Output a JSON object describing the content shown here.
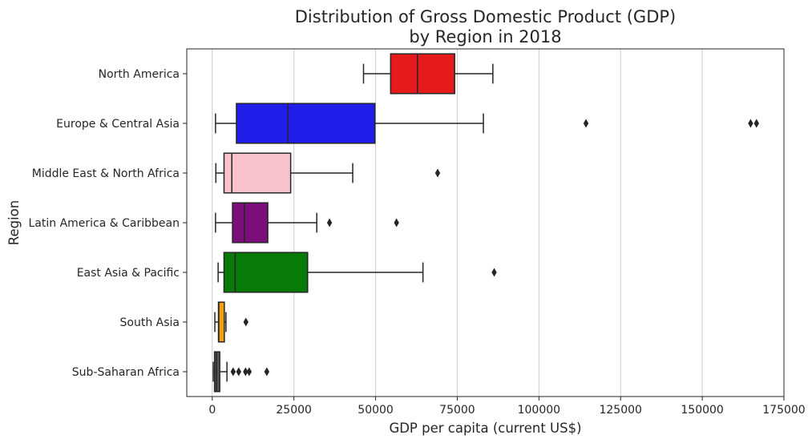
{
  "chart_data": {
    "type": "box",
    "orientation": "horizontal",
    "title_lines": [
      "Distribution of Gross Domestic Product (GDP)",
      "by Region in 2018"
    ],
    "xlabel": "GDP per capita (current US$)",
    "ylabel": "Region",
    "xlim": [
      -7800,
      175000
    ],
    "xticks": [
      0,
      25000,
      50000,
      75000,
      100000,
      125000,
      150000,
      175000
    ],
    "xtick_labels": [
      "0",
      "25000",
      "50000",
      "75000",
      "100000",
      "125000",
      "150000",
      "175000"
    ],
    "grid": "vertical",
    "categories": [
      "North America",
      "Europe & Central Asia",
      "Middle East & North Africa",
      "Latin America & Caribbean",
      "East Asia & Pacific",
      "South Asia",
      "Sub-Saharan Africa"
    ],
    "series": [
      {
        "category": "North America",
        "color": "#e41a1c",
        "whisker_low": 46300,
        "q1": 54600,
        "median": 62800,
        "q3": 74200,
        "whisker_high": 85900,
        "outliers": []
      },
      {
        "category": "Europe & Central Asia",
        "color": "#1e1ee8",
        "whisker_low": 1000,
        "q1": 7400,
        "median": 23200,
        "q3": 49800,
        "whisker_high": 83000,
        "outliers": [
          114400,
          164800,
          166600
        ]
      },
      {
        "category": "Middle East & North Africa",
        "color": "#f9c3cd",
        "whisker_low": 1100,
        "q1": 3600,
        "median": 6000,
        "q3": 24000,
        "whisker_high": 43000,
        "outliers": [
          69000
        ]
      },
      {
        "category": "Latin America & Caribbean",
        "color": "#7a0e7a",
        "whisker_low": 1000,
        "q1": 6200,
        "median": 9800,
        "q3": 17000,
        "whisker_high": 32000,
        "outliers": [
          35900,
          56400
        ]
      },
      {
        "category": "East Asia & Pacific",
        "color": "#087a08",
        "whisker_low": 1800,
        "q1": 3600,
        "median": 7000,
        "q3": 29200,
        "whisker_high": 64500,
        "outliers": [
          86300
        ]
      },
      {
        "category": "South Asia",
        "color": "#f5a00f",
        "whisker_low": 800,
        "q1": 1900,
        "median": 2000,
        "q3": 3700,
        "whisker_high": 4200,
        "outliers": [
          10300
        ]
      },
      {
        "category": "Sub-Saharan Africa",
        "color": "#555555",
        "whisker_low": 300,
        "q1": 700,
        "median": 1300,
        "q3": 2300,
        "whisker_high": 4500,
        "outliers": [
          6400,
          8100,
          10200,
          11300,
          16700
        ]
      }
    ]
  }
}
